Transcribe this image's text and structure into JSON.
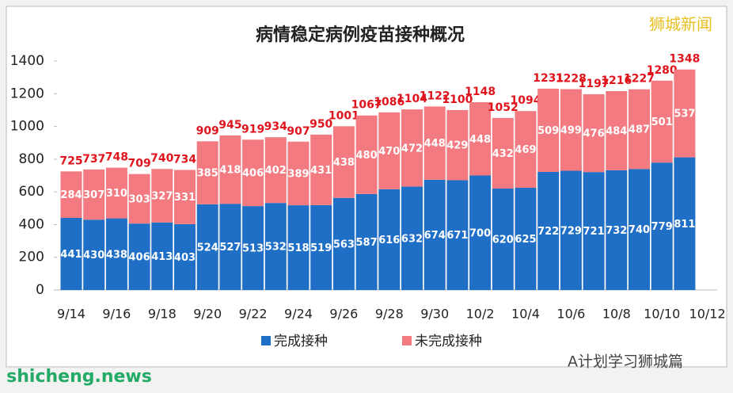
{
  "chart_data": {
    "type": "stacked-bar",
    "title": "病情稳定病例疫苗接种概况",
    "categories": [
      "9/14",
      null,
      "9/16",
      null,
      "9/18",
      null,
      "9/20",
      null,
      "9/22",
      null,
      "9/24",
      null,
      "9/26",
      null,
      "9/28",
      null,
      "9/30",
      null,
      "10/2",
      null,
      "10/4",
      null,
      "10/6",
      null,
      "10/8",
      null,
      "10/10",
      null,
      "10/12"
    ],
    "series": [
      {
        "name": "完成接种",
        "color": "#1f6fc6",
        "values": [
          441,
          430,
          438,
          406,
          413,
          403,
          524,
          527,
          513,
          532,
          518,
          519,
          563,
          587,
          616,
          632,
          674,
          671,
          700,
          620,
          625,
          722,
          729,
          721,
          732,
          740,
          779,
          811,
          null
        ]
      },
      {
        "name": "未完成接种",
        "color": "#f27a80",
        "values": [
          284,
          307,
          310,
          303,
          327,
          331,
          385,
          418,
          406,
          402,
          389,
          431,
          438,
          480,
          470,
          472,
          448,
          429,
          448,
          432,
          469,
          509,
          499,
          476,
          484,
          487,
          501,
          537,
          null
        ]
      }
    ],
    "totals": [
      725,
      737,
      748,
      709,
      740,
      734,
      909,
      945,
      919,
      934,
      907,
      950,
      1001,
      1067,
      1086,
      1104,
      1122,
      1100,
      1148,
      1052,
      1094,
      1231,
      1228,
      1197,
      1216,
      1227,
      1280,
      1348,
      null
    ],
    "totals_color": "#e0141c",
    "ylim": [
      0,
      1400
    ],
    "yticks": [
      0,
      200,
      400,
      600,
      800,
      1000,
      1200,
      1400
    ],
    "legend": "bottom",
    "watermarks": [
      "狮城新闻",
      "A计划学习狮城篇",
      "shicheng.news"
    ]
  }
}
